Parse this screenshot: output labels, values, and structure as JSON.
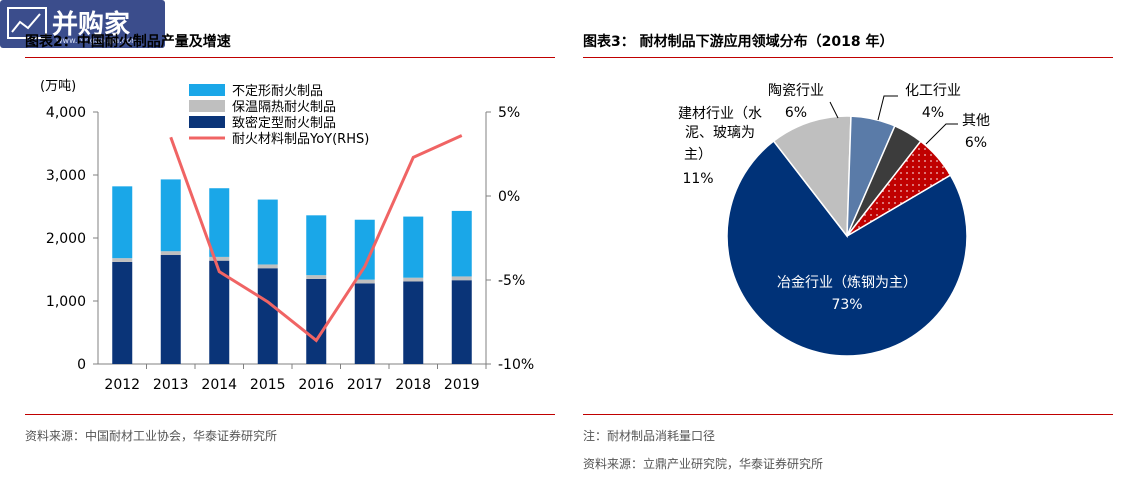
{
  "logo": {
    "text": "并购家",
    "sub": "www.binggoujia.com"
  },
  "left_panel": {
    "title": "图表2：中国耐火制品产量及增速",
    "source": "资料来源：中国耐材工业协会，华泰证券研究所"
  },
  "right_panel": {
    "title": "图表3：  耐材制品下游应用领域分布（2018 年）",
    "note": "注：耐材制品消耗量口径",
    "source": "资料来源：立鼎产业研究院，华泰证券研究所"
  },
  "colors": {
    "rule": "#c00000",
    "dense": "#0a3478",
    "insulating": "#bfbfbf",
    "unshaped": "#1aa7e8",
    "yoy": "#f06464",
    "pie_metallurgy": "#003278",
    "pie_building": "#bfbfbf",
    "pie_ceramics": "#5a7ba8",
    "pie_chemical": "#3c3c3c",
    "pie_other": "#c00000"
  },
  "chart_data": [
    {
      "type": "bar",
      "stacked": true,
      "categories": [
        "2012",
        "2013",
        "2014",
        "2015",
        "2016",
        "2017",
        "2018",
        "2019"
      ],
      "ylabel": "(万吨)",
      "ylim": [
        0,
        4000
      ],
      "y_ticks": [
        "0",
        "1,000",
        "2,000",
        "3,000",
        "4,000"
      ],
      "y2lim": [
        -10,
        5
      ],
      "y2_ticks": [
        "-10%",
        "-5%",
        "0%",
        "5%"
      ],
      "series": [
        {
          "name": "致密定型耐火制品",
          "values": [
            1620,
            1730,
            1640,
            1520,
            1350,
            1280,
            1310,
            1330
          ]
        },
        {
          "name": "保温隔热耐火制品",
          "values": [
            60,
            60,
            60,
            60,
            60,
            60,
            60,
            60
          ]
        },
        {
          "name": "不定形耐火制品",
          "values": [
            1140,
            1140,
            1090,
            1030,
            950,
            950,
            970,
            1040
          ]
        },
        {
          "name": "耐火材料制品YoY(RHS)",
          "axis": "right",
          "type": "line",
          "values": [
            null,
            3.5,
            -4.5,
            -6.3,
            -8.6,
            -4.2,
            2.3,
            3.6
          ]
        }
      ],
      "legend_order": [
        "不定形耐火制品",
        "保温隔热耐火制品",
        "致密定型耐火制品",
        "耐火材料制品YoY(RHS)"
      ]
    },
    {
      "type": "pie",
      "slices": [
        {
          "label_lines": [
            "冶金行业（炼钢为主）"
          ],
          "value": 73,
          "value_label": "73%"
        },
        {
          "label_lines": [
            "建材行业（水",
            "泥、玻璃为",
            "主）"
          ],
          "value": 11,
          "value_label": "11%"
        },
        {
          "label_lines": [
            "陶瓷行业"
          ],
          "value": 6,
          "value_label": "6%"
        },
        {
          "label_lines": [
            "化工行业"
          ],
          "value": 4,
          "value_label": "4%"
        },
        {
          "label_lines": [
            "其他"
          ],
          "value": 6,
          "value_label": "6%"
        }
      ]
    }
  ]
}
